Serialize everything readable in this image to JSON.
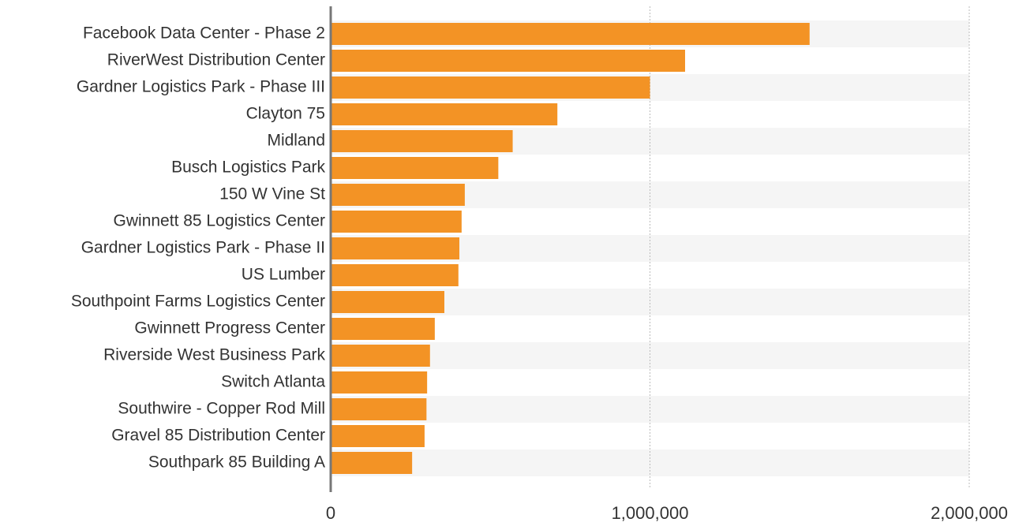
{
  "chart_data": {
    "type": "bar",
    "orientation": "horizontal",
    "categories": [
      "Facebook Data Center - Phase 2",
      "RiverWest Distribution Center",
      "Gardner Logistics Park - Phase III",
      "Clayton 75",
      "Midland",
      "Busch Logistics Park",
      "150 W Vine St",
      "Gwinnett 85 Logistics Center",
      "Gardner Logistics Park - Phase II",
      "US Lumber",
      "Southpoint Farms Logistics Center",
      "Gwinnett Progress Center",
      "Riverside West Business Park",
      "Switch Atlanta",
      "Southwire - Copper Rod Mill",
      "Gravel 85 Distribution Center",
      "Southpark 85 Building A"
    ],
    "values": [
      1500000,
      1110000,
      1000000,
      710000,
      570000,
      525000,
      420000,
      410000,
      403000,
      400000,
      356000,
      326000,
      311000,
      302000,
      300000,
      294000,
      255000
    ],
    "color": "#f39325",
    "xlim": [
      0,
      2000000
    ],
    "xticks": [
      0,
      {
        "value": 1000000,
        "label": "1,000,000"
      },
      {
        "value": 2000000,
        "label": "2,000,000"
      }
    ],
    "grid": true
  }
}
